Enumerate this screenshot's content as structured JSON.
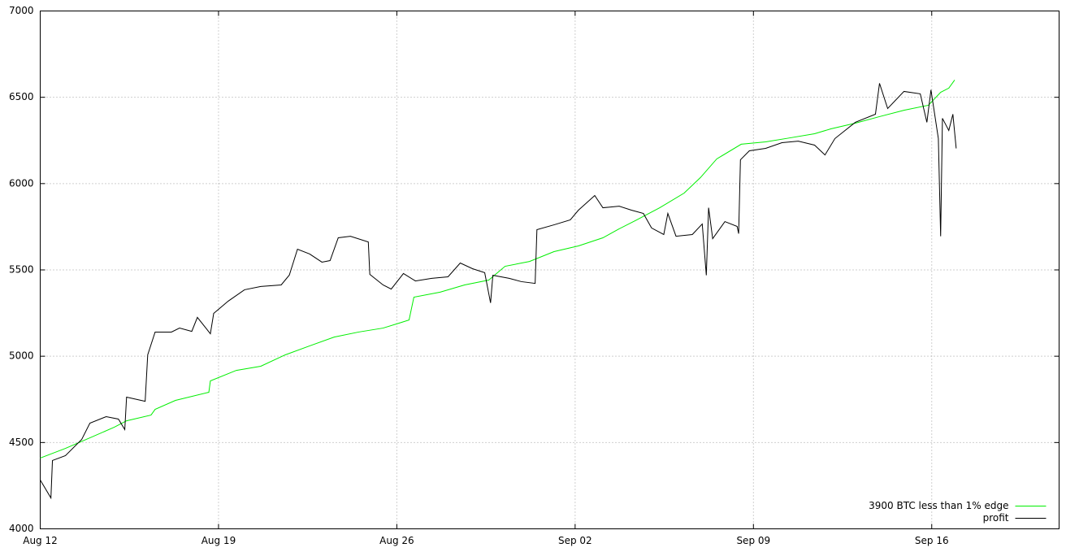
{
  "chart_data": {
    "type": "line",
    "xlim": [
      0,
      40
    ],
    "ylim": [
      4000,
      7000
    ],
    "xticks": [
      {
        "value": 0,
        "label": "Aug 12"
      },
      {
        "value": 7,
        "label": "Aug 19"
      },
      {
        "value": 14,
        "label": "Aug 26"
      },
      {
        "value": 21,
        "label": "Sep 02"
      },
      {
        "value": 28,
        "label": "Sep 09"
      },
      {
        "value": 35,
        "label": "Sep 16"
      }
    ],
    "yticks": [
      4000,
      4500,
      5000,
      5500,
      6000,
      6500,
      7000
    ],
    "grid": true,
    "legend": "bottom-right",
    "series": [
      {
        "name": "3900 BTC less than 1% edge",
        "color": "#00ee00",
        "x": [
          0,
          0.99,
          1.95,
          2.91,
          3.39,
          4.35,
          4.51,
          5.31,
          6.62,
          6.68,
          7.7,
          8.66,
          9.62,
          10.58,
          11.54,
          12.5,
          13.46,
          14.1,
          14.48,
          14.67,
          15.7,
          16.66,
          17.61,
          18.25,
          19.21,
          20.17,
          21.13,
          22.09,
          22.73,
          23.36,
          24.32,
          25.28,
          25.92,
          26.56,
          27.52,
          28.48,
          29.44,
          30.4,
          31.04,
          32.0,
          32.95,
          33.91,
          34.87,
          35.35,
          35.67,
          35.9
        ],
        "values": [
          4410,
          4466,
          4527,
          4589,
          4626,
          4659,
          4692,
          4744,
          4791,
          4857,
          4918,
          4942,
          5008,
          5060,
          5111,
          5140,
          5163,
          5192,
          5210,
          5342,
          5371,
          5413,
          5441,
          5521,
          5549,
          5606,
          5639,
          5686,
          5738,
          5785,
          5860,
          5945,
          6035,
          6143,
          6228,
          6242,
          6265,
          6289,
          6317,
          6350,
          6388,
          6425,
          6454,
          6529,
          6553,
          6600
        ]
      },
      {
        "name": "profit",
        "color": "#000000",
        "x": [
          0,
          0.42,
          0.48,
          0.99,
          1.63,
          1.95,
          2.59,
          3.07,
          3.32,
          3.39,
          4.12,
          4.22,
          4.51,
          5.15,
          5.47,
          5.95,
          6.17,
          6.68,
          6.81,
          7.38,
          8.02,
          8.66,
          9.46,
          9.78,
          10.1,
          10.58,
          11.06,
          11.38,
          11.7,
          12.18,
          12.88,
          12.94,
          13.46,
          13.78,
          14.26,
          14.73,
          15.37,
          16.01,
          16.49,
          16.97,
          17.45,
          17.68,
          17.77,
          18.41,
          18.89,
          19.43,
          19.5,
          20.17,
          20.81,
          21.13,
          21.77,
          22.09,
          22.73,
          23.21,
          23.68,
          24.0,
          24.48,
          24.64,
          24.96,
          25.6,
          25.99,
          26.15,
          26.24,
          26.4,
          26.88,
          27.36,
          27.42,
          27.49,
          27.84,
          28.48,
          29.12,
          29.76,
          30.4,
          30.81,
          31.2,
          32.0,
          32.79,
          32.95,
          33.27,
          33.91,
          34.55,
          34.81,
          34.97,
          35.26,
          35.35,
          35.42,
          35.67,
          35.83,
          35.96
        ],
        "values": [
          4283,
          4179,
          4396,
          4424,
          4518,
          4612,
          4650,
          4636,
          4575,
          4763,
          4739,
          5008,
          5140,
          5140,
          5163,
          5144,
          5225,
          5130,
          5248,
          5319,
          5385,
          5404,
          5413,
          5470,
          5620,
          5592,
          5545,
          5554,
          5686,
          5695,
          5662,
          5474,
          5413,
          5389,
          5479,
          5436,
          5451,
          5460,
          5540,
          5507,
          5484,
          5309,
          5469,
          5451,
          5432,
          5422,
          5733,
          5761,
          5790,
          5846,
          5931,
          5860,
          5869,
          5846,
          5827,
          5743,
          5705,
          5827,
          5695,
          5705,
          5766,
          5469,
          5860,
          5681,
          5780,
          5752,
          5710,
          6138,
          6190,
          6204,
          6237,
          6246,
          6223,
          6166,
          6261,
          6355,
          6402,
          6581,
          6435,
          6534,
          6520,
          6355,
          6543,
          6261,
          5695,
          6378,
          6308,
          6402,
          6204
        ]
      }
    ]
  }
}
